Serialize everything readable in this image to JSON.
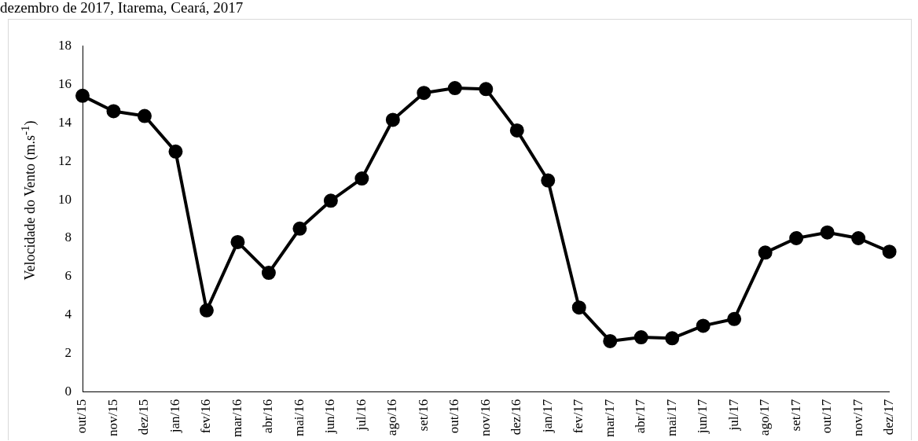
{
  "chart_data": {
    "type": "line",
    "title": "dezembro de 2017, Itarema, Ceará, 2017",
    "ylabel": "Velocidade do Vento (m.s$^{-1}$)",
    "categories": [
      "out/15",
      "nov/15",
      "dez/15",
      "jan/16",
      "fev/16",
      "mar/16",
      "abr/16",
      "mai/16",
      "jun/16",
      "jul/16",
      "ago/16",
      "set/16",
      "out/16",
      "nov/16",
      "dez/16",
      "jan/17",
      "fev/17",
      "mar/17",
      "abr/17",
      "mai/17",
      "jun/17",
      "jul/17",
      "ago/17",
      "set/17",
      "out/17",
      "nov/17",
      "dez/17"
    ],
    "series": [
      {
        "color": "#000000",
        "values": [
          15.4,
          14.6,
          14.35,
          12.5,
          4.25,
          7.8,
          6.2,
          8.5,
          9.95,
          11.1,
          14.15,
          15.55,
          15.8,
          15.75,
          13.6,
          11.0,
          4.4,
          2.65,
          2.85,
          2.8,
          3.45,
          3.8,
          7.25,
          8.0,
          8.3,
          8.0,
          7.3
        ]
      }
    ],
    "ylim": [
      0,
      18
    ],
    "yticks": [
      0,
      2,
      4,
      6,
      8,
      10,
      12,
      14,
      16,
      18
    ],
    "grid": false,
    "legend": false,
    "marker": "circle",
    "line_style": "solid"
  }
}
